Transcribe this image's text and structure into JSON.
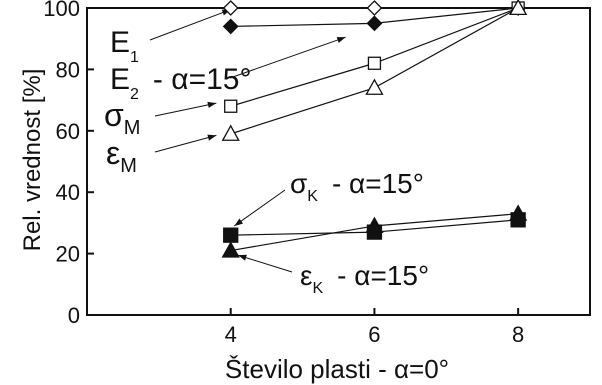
{
  "chart_data": {
    "type": "line",
    "xlabel": "Število plasti - α=0°",
    "ylabel": "Rel. vrednost [%]",
    "xlim": [
      2,
      9
    ],
    "ylim": [
      0,
      100
    ],
    "x": [
      4,
      6,
      8
    ],
    "xticks": [
      "4",
      "6",
      "8"
    ],
    "yticks": [
      "0",
      "20",
      "40",
      "60",
      "80",
      "100"
    ],
    "grid": false,
    "series": [
      {
        "name": "E1",
        "marker": "diamond-open",
        "values": [
          100,
          100,
          100
        ]
      },
      {
        "name": "E2 - α=15°",
        "marker": "diamond-filled",
        "values": [
          94,
          95,
          100
        ]
      },
      {
        "name": "σM",
        "marker": "square-open",
        "values": [
          68,
          82,
          100
        ]
      },
      {
        "name": "εM",
        "marker": "triangle-open",
        "values": [
          59,
          74,
          100
        ]
      },
      {
        "name": "σK - α=15°",
        "marker": "square-filled",
        "values": [
          26,
          27,
          31
        ]
      },
      {
        "name": "εK - α=15°",
        "marker": "triangle-filled",
        "values": [
          21,
          29,
          33
        ]
      }
    ],
    "annotations": {
      "e1": {
        "main": "E",
        "sub": "1"
      },
      "e2": {
        "main": "E",
        "sub": "2",
        "suffix": "- α=15°"
      },
      "sigma_m": {
        "main": "σ",
        "sub": "M"
      },
      "eps_m": {
        "main": "ε",
        "sub": "M"
      },
      "sigma_k": {
        "main": "σ",
        "sub": "K",
        "suffix": "- α=15°"
      },
      "eps_k": {
        "main": "ε",
        "sub": "K",
        "suffix": "- α=15°"
      }
    }
  }
}
